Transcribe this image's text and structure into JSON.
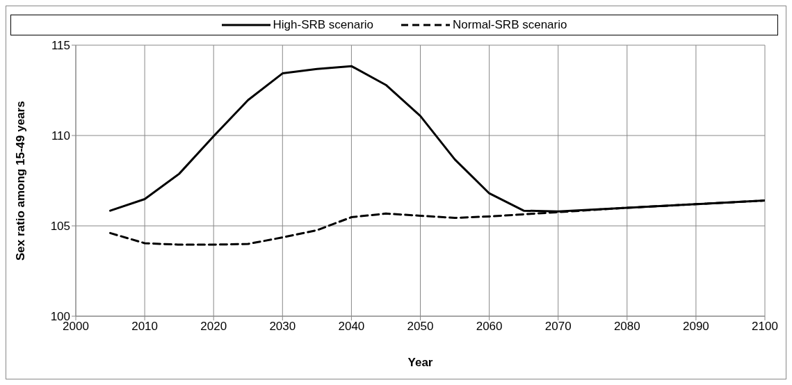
{
  "chart_data": {
    "type": "line",
    "xlabel": "Year",
    "ylabel": "Sex ratio among 15-49 years",
    "x": [
      2005,
      2010,
      2015,
      2020,
      2025,
      2030,
      2035,
      2040,
      2045,
      2050,
      2055,
      2060,
      2065,
      2070,
      2080,
      2090,
      2100
    ],
    "series": [
      {
        "name": "High-SRB scenario",
        "color": "#000000",
        "line_style": "solid",
        "values": [
          105.84,
          106.48,
          107.88,
          109.96,
          111.96,
          113.44,
          113.68,
          113.84,
          112.8,
          111.08,
          108.68,
          106.8,
          105.84,
          105.8,
          106.0,
          106.2,
          106.4
        ]
      },
      {
        "name": "Normal-SRB scenario",
        "color": "#000000",
        "line_style": "dashed",
        "values": [
          104.6,
          104.04,
          103.96,
          103.96,
          104.0,
          104.36,
          104.76,
          105.48,
          105.68,
          105.56,
          105.44,
          105.52,
          105.64,
          105.76,
          106.0,
          106.2,
          106.4
        ]
      }
    ],
    "xlim": [
      2000,
      2100
    ],
    "xticks": [
      2000,
      2010,
      2020,
      2030,
      2040,
      2050,
      2060,
      2070,
      2080,
      2090,
      2100
    ],
    "ylim": [
      100,
      115
    ],
    "yticks": [
      100,
      105,
      110,
      115
    ],
    "grid": true,
    "legend": "top",
    "marker": "none"
  }
}
